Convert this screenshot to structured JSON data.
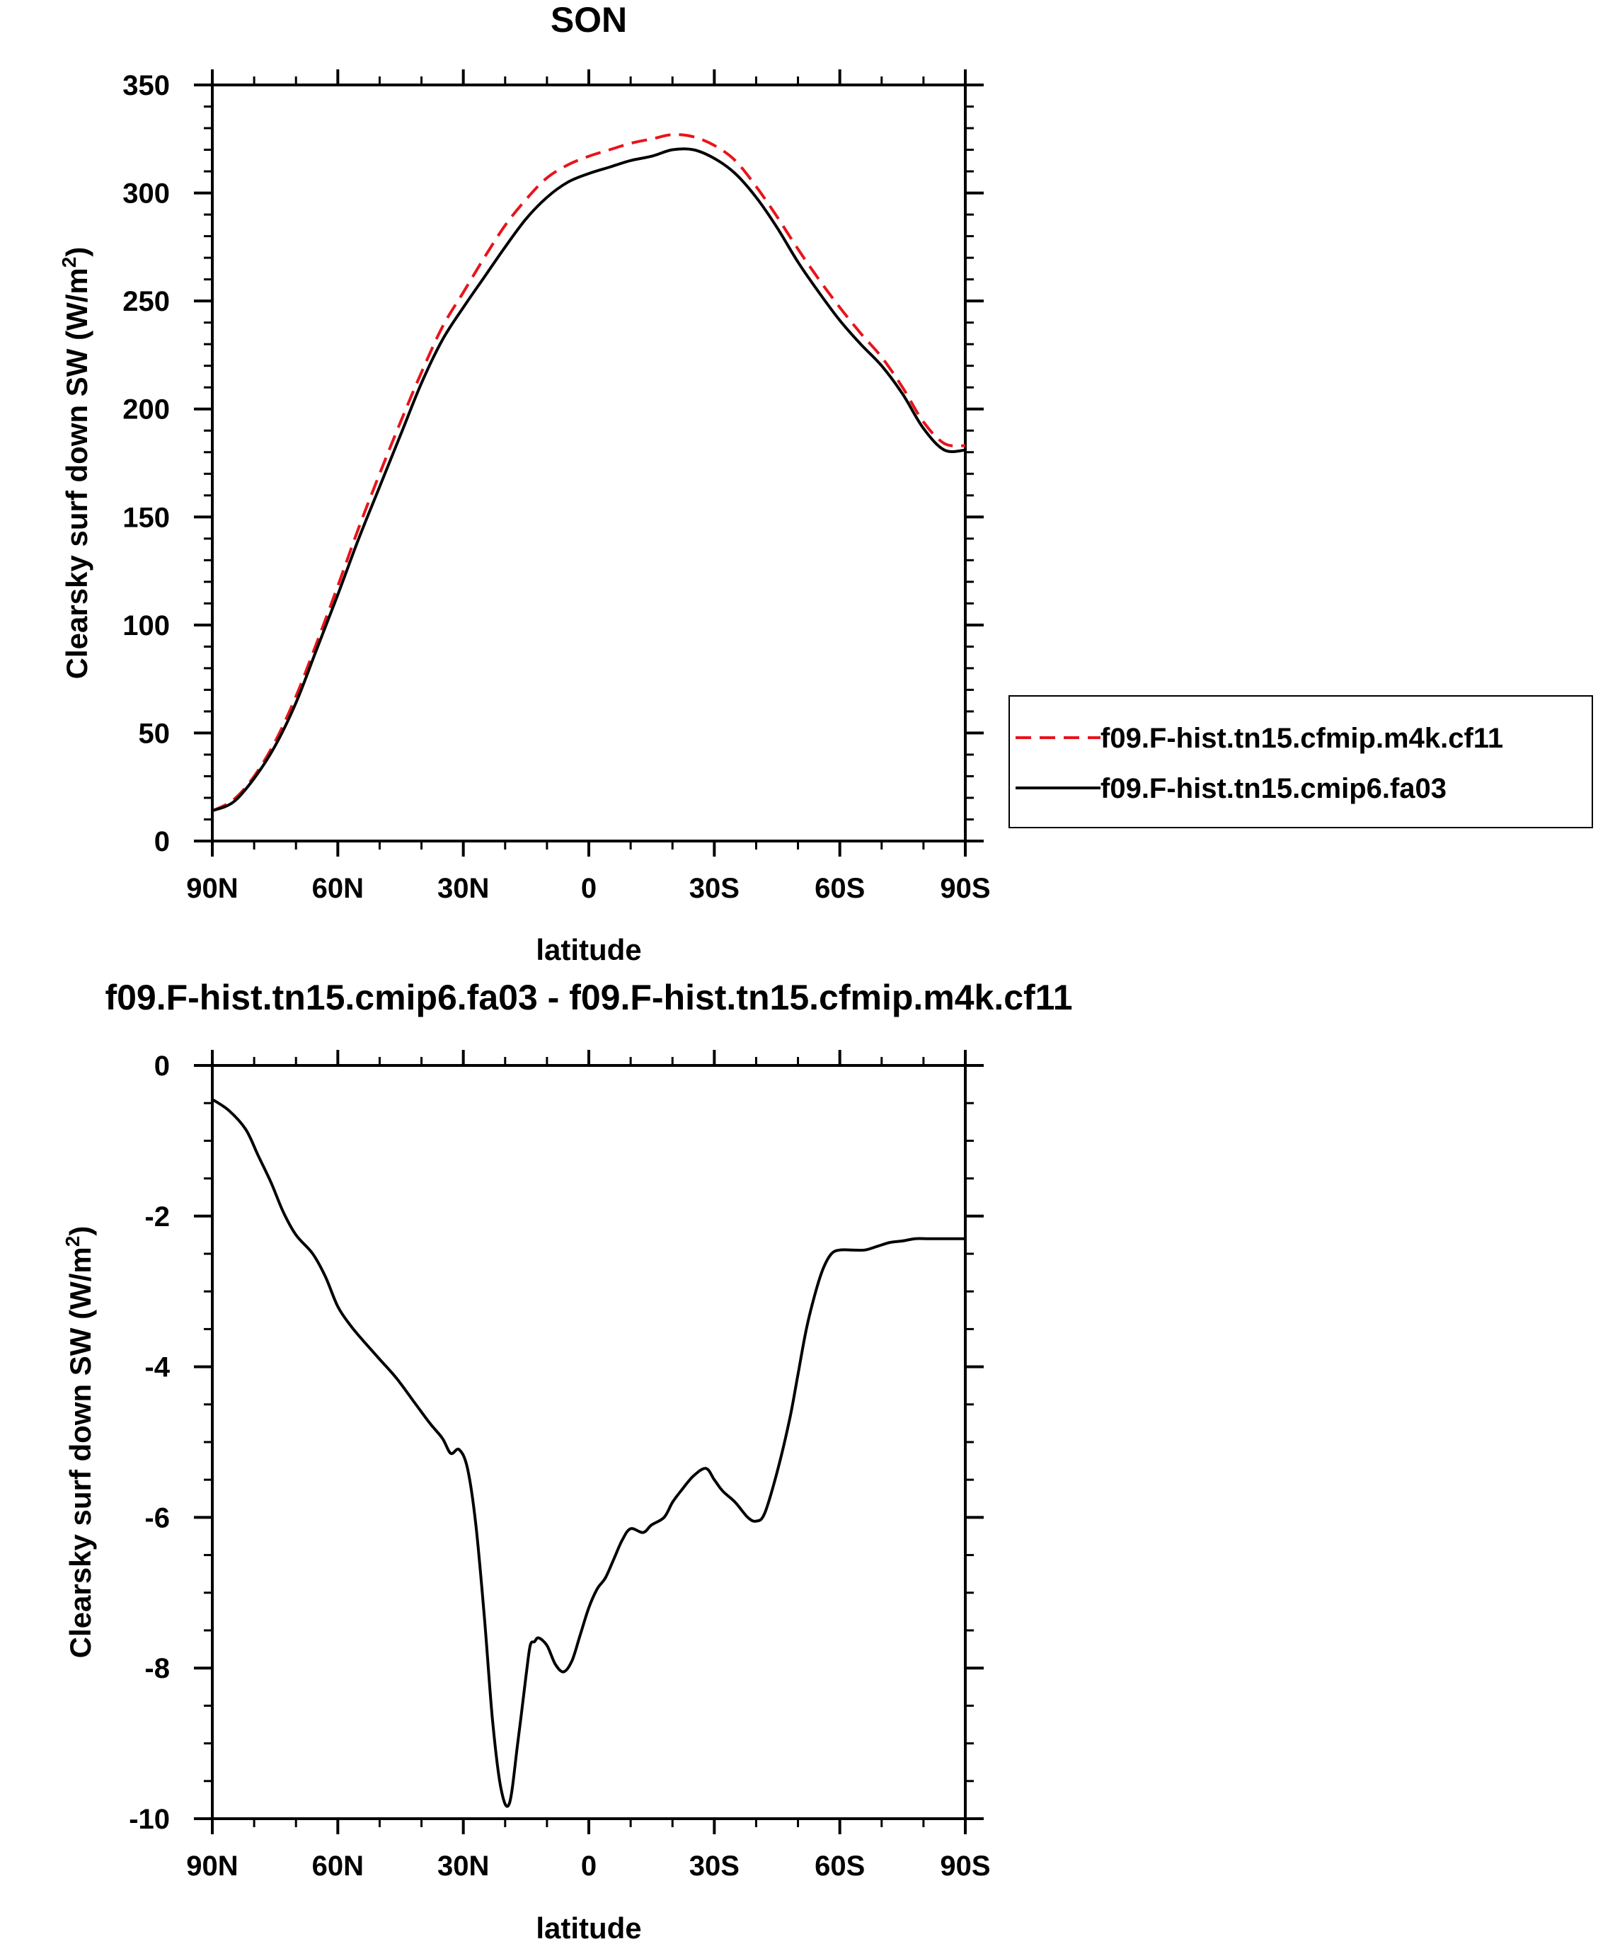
{
  "chart_data": [
    {
      "type": "line",
      "title": "SON",
      "xlabel": "latitude",
      "ylabel_main": "Clearsky surf down SW (W/m",
      "ylabel_sup": "2",
      "ylabel_close": ")",
      "xlim": [
        90,
        -90
      ],
      "ylim": [
        0,
        350
      ],
      "xticks": [
        {
          "value": 90,
          "label": "90N"
        },
        {
          "value": 60,
          "label": "60N"
        },
        {
          "value": 30,
          "label": "30N"
        },
        {
          "value": 0,
          "label": "0"
        },
        {
          "value": -30,
          "label": "30S"
        },
        {
          "value": -60,
          "label": "60S"
        },
        {
          "value": -90,
          "label": "90S"
        }
      ],
      "yticks": [
        {
          "value": 0,
          "label": "0"
        },
        {
          "value": 50,
          "label": "50"
        },
        {
          "value": 100,
          "label": "100"
        },
        {
          "value": 150,
          "label": "150"
        },
        {
          "value": 200,
          "label": "200"
        },
        {
          "value": 250,
          "label": "250"
        },
        {
          "value": 300,
          "label": "300"
        },
        {
          "value": 350,
          "label": "350"
        }
      ],
      "legend_position": "right",
      "series": [
        {
          "name": "f09.F-hist.tn15.cfmip.m4k.cf11",
          "color": "#e8141b",
          "dash": "dashed",
          "x": [
            90,
            85,
            80,
            75,
            70,
            65,
            60,
            55,
            50,
            45,
            40,
            35,
            30,
            25,
            20,
            15,
            10,
            5,
            0,
            -5,
            -10,
            -15,
            -20,
            -25,
            -30,
            -35,
            -40,
            -45,
            -50,
            -55,
            -60,
            -65,
            -70,
            -75,
            -80,
            -85,
            -90
          ],
          "y": [
            14,
            19,
            30,
            46,
            67,
            92,
            118,
            145,
            170,
            194,
            217,
            238,
            254,
            270,
            285,
            297,
            307,
            313,
            317,
            320,
            323,
            325,
            327,
            326,
            322,
            315,
            303,
            289,
            274,
            260,
            247,
            235,
            224,
            210,
            194,
            184,
            183
          ]
        },
        {
          "name": "f09.F-hist.tn15.cmip6.fa03",
          "color": "#000000",
          "dash": "solid",
          "x": [
            90,
            85,
            80,
            75,
            70,
            65,
            60,
            55,
            50,
            45,
            40,
            35,
            30,
            25,
            20,
            15,
            10,
            5,
            0,
            -5,
            -10,
            -15,
            -20,
            -25,
            -30,
            -35,
            -40,
            -45,
            -50,
            -55,
            -60,
            -65,
            -70,
            -75,
            -80,
            -85,
            -90
          ],
          "y": [
            14,
            18,
            29,
            44,
            64,
            89,
            114,
            140,
            164,
            188,
            212,
            232,
            247,
            261,
            275,
            288,
            298,
            305,
            309,
            312,
            315,
            317,
            320,
            320,
            316,
            309,
            298,
            284,
            268,
            254,
            241,
            230,
            220,
            207,
            191,
            181,
            181
          ]
        }
      ]
    },
    {
      "type": "line",
      "title": "f09.F-hist.tn15.cmip6.fa03 - f09.F-hist.tn15.cfmip.m4k.cf11",
      "xlabel": "latitude",
      "ylabel_main": "Clearsky surf down SW (W/m",
      "ylabel_sup": "2",
      "ylabel_close": ")",
      "xlim": [
        90,
        -90
      ],
      "ylim": [
        -10,
        0
      ],
      "xticks": [
        {
          "value": 90,
          "label": "90N"
        },
        {
          "value": 60,
          "label": "60N"
        },
        {
          "value": 30,
          "label": "30N"
        },
        {
          "value": 0,
          "label": "0"
        },
        {
          "value": -30,
          "label": "30S"
        },
        {
          "value": -60,
          "label": "60S"
        },
        {
          "value": -90,
          "label": "90S"
        }
      ],
      "yticks": [
        {
          "value": 0,
          "label": "0"
        },
        {
          "value": -2,
          "label": "-2"
        },
        {
          "value": -4,
          "label": "-4"
        },
        {
          "value": -6,
          "label": "-6"
        },
        {
          "value": -8,
          "label": "-8"
        },
        {
          "value": -10,
          "label": "-10"
        }
      ],
      "series": [
        {
          "color": "#000000",
          "x": [
            90,
            86,
            82,
            79,
            76,
            73,
            70,
            66,
            63,
            60,
            57,
            54,
            50,
            46,
            42,
            38,
            35,
            33,
            31,
            29,
            27,
            25,
            23,
            21,
            19,
            17,
            15,
            14,
            13,
            12,
            10,
            8,
            6,
            4,
            2,
            0,
            -2,
            -4,
            -6,
            -8,
            -10,
            -13,
            -15,
            -18,
            -20,
            -22,
            -25,
            -28,
            -30,
            -32,
            -35,
            -38,
            -40,
            -42,
            -45,
            -48,
            -50,
            -52,
            -54,
            -56,
            -58,
            -60,
            -63,
            -66,
            -69,
            -72,
            -75,
            -78,
            -81,
            -84,
            -87,
            -90
          ],
          "y": [
            -0.45,
            -0.6,
            -0.85,
            -1.2,
            -1.55,
            -1.95,
            -2.25,
            -2.5,
            -2.8,
            -3.2,
            -3.45,
            -3.65,
            -3.9,
            -4.15,
            -4.45,
            -4.75,
            -4.95,
            -5.15,
            -5.1,
            -5.35,
            -6.1,
            -7.3,
            -8.7,
            -9.6,
            -9.8,
            -9.0,
            -8.1,
            -7.7,
            -7.65,
            -7.6,
            -7.7,
            -7.95,
            -8.05,
            -7.9,
            -7.55,
            -7.2,
            -6.95,
            -6.8,
            -6.55,
            -6.3,
            -6.15,
            -6.2,
            -6.1,
            -6.0,
            -5.8,
            -5.65,
            -5.45,
            -5.35,
            -5.5,
            -5.65,
            -5.8,
            -6.0,
            -6.05,
            -5.95,
            -5.4,
            -4.7,
            -4.1,
            -3.5,
            -3.05,
            -2.7,
            -2.5,
            -2.45,
            -2.45,
            -2.45,
            -2.4,
            -2.35,
            -2.33,
            -2.3,
            -2.3,
            -2.3,
            -2.3,
            -2.3
          ]
        }
      ]
    }
  ]
}
